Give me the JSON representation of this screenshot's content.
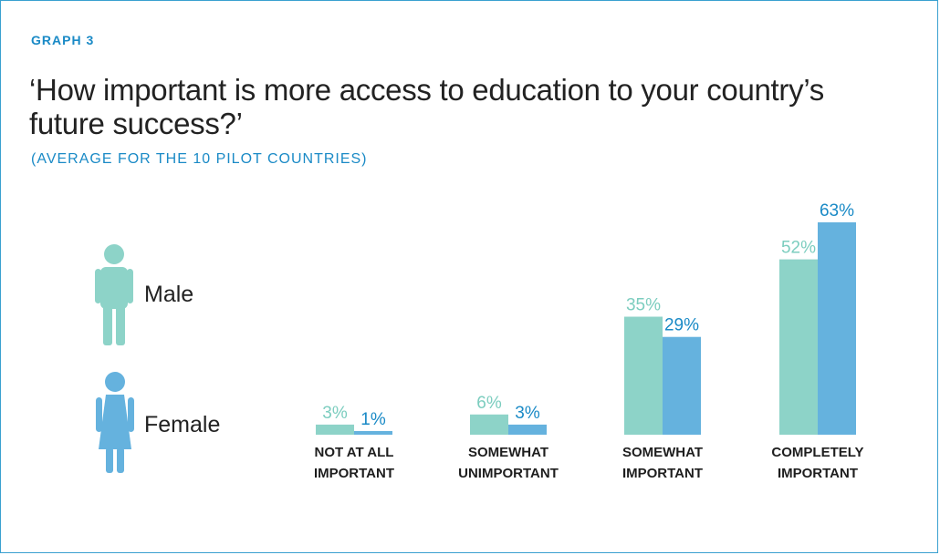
{
  "header": {
    "graph_label": "GRAPH 3",
    "title": "‘How important is more access to education to your country’s future success?’",
    "subtitle": "(AVERAGE FOR THE 10 PILOT COUNTRIES)"
  },
  "legend": {
    "male_label": "Male",
    "female_label": "Female",
    "male_icon": "male-person-icon",
    "female_icon": "female-person-icon"
  },
  "colors": {
    "male": "#8dd3c8",
    "female": "#65b2de",
    "male_text": "#7ccdbf",
    "female_text": "#1a8ac6",
    "frame": "#3aa0d0"
  },
  "chart_data": {
    "type": "bar",
    "categories": [
      [
        "NOT AT ALL",
        "IMPORTANT"
      ],
      [
        "SOMEWHAT",
        "UNIMPORTANT"
      ],
      [
        "SOMEWHAT",
        "IMPORTANT"
      ],
      [
        "COMPLETELY",
        "IMPORTANT"
      ]
    ],
    "series": [
      {
        "name": "Male",
        "values": [
          3,
          6,
          35,
          52
        ],
        "labels": [
          "3%",
          "6%",
          "35%",
          "52%"
        ]
      },
      {
        "name": "Female",
        "values": [
          1,
          3,
          29,
          63
        ],
        "labels": [
          "1%",
          "3%",
          "29%",
          "63%"
        ]
      }
    ],
    "value_unit": "%",
    "ylim": [
      0,
      63
    ],
    "grid": false,
    "legend_position": "left"
  }
}
